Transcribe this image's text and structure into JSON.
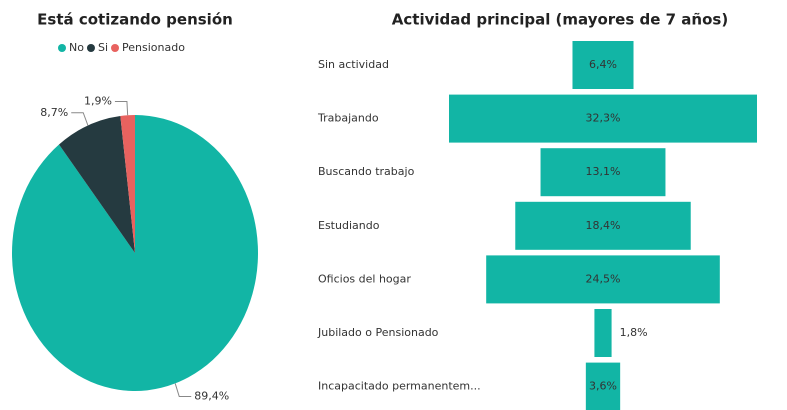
{
  "chart_data": [
    {
      "type": "pie",
      "title": "Está cotizando pensión",
      "categories": [
        "No",
        "Si",
        "Pensionado"
      ],
      "values": [
        89.4,
        8.7,
        1.9
      ],
      "value_labels": [
        "89,4%",
        "8,7%",
        "1,9%"
      ],
      "colors": [
        "#12b5a5",
        "#253a40",
        "#e8625f"
      ],
      "legend": "top"
    },
    {
      "type": "funnel",
      "title": "Actividad principal (mayores de 7 años)",
      "categories": [
        "Sin actividad",
        "Trabajando",
        "Buscando trabajo",
        "Estudiando",
        "Oficios del hogar",
        "Jubilado o Pensionado",
        "Incapacitado permanentem..."
      ],
      "values": [
        6.4,
        32.3,
        13.1,
        18.4,
        24.5,
        1.8,
        3.6
      ],
      "value_labels": [
        "6,4%",
        "32,3%",
        "13,1%",
        "18,4%",
        "24,5%",
        "1,8%",
        "3,6%"
      ],
      "color": "#12b5a5"
    }
  ]
}
